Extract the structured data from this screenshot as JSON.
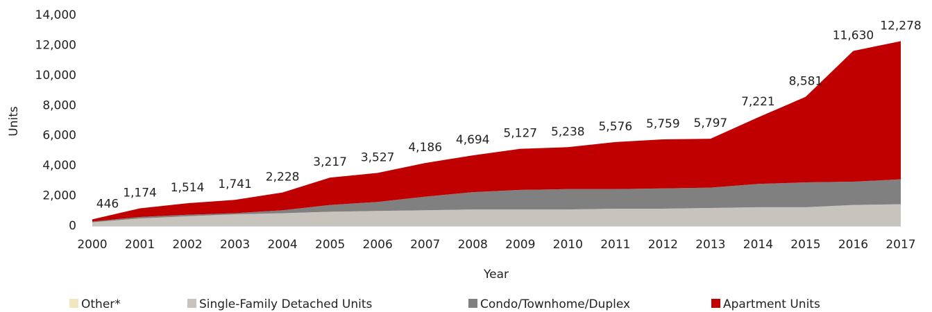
{
  "chart_data": {
    "type": "stacked_area",
    "x_label": "Year",
    "y_label": "Units",
    "categories": [
      "2000",
      "2001",
      "2002",
      "2003",
      "2004",
      "2005",
      "2006",
      "2007",
      "2008",
      "2009",
      "2010",
      "2011",
      "2012",
      "2013",
      "2014",
      "2015",
      "2016",
      "2017"
    ],
    "series": [
      {
        "name": "Other*",
        "color": "#f0e6c0",
        "values": [
          20,
          20,
          20,
          20,
          20,
          20,
          20,
          20,
          20,
          20,
          20,
          20,
          20,
          20,
          20,
          20,
          20,
          20
        ]
      },
      {
        "name": "Single-Family Detached Units",
        "color": "#c8c4bd",
        "values": [
          230,
          480,
          630,
          760,
          830,
          930,
          980,
          1030,
          1080,
          1080,
          1080,
          1130,
          1130,
          1180,
          1230,
          1230,
          1380,
          1430
        ]
      },
      {
        "name": "Condo/Townhome/Duplex",
        "color": "#808080",
        "values": [
          50,
          100,
          100,
          70,
          200,
          450,
          600,
          900,
          1150,
          1300,
          1350,
          1300,
          1350,
          1350,
          1550,
          1650,
          1550,
          1650
        ]
      },
      {
        "name": "Apartment Units",
        "color": "#c00000",
        "values": [
          146,
          574,
          764,
          891,
          1178,
          1817,
          1927,
          2236,
          2444,
          2727,
          2788,
          3126,
          3259,
          3247,
          4421,
          5681,
          8680,
          9178
        ]
      }
    ],
    "totals": [
      446,
      1174,
      1514,
      1741,
      2228,
      3217,
      3527,
      4186,
      4694,
      5127,
      5238,
      5576,
      5759,
      5797,
      7221,
      8581,
      11630,
      12278
    ],
    "total_labels": [
      "446",
      "1,174",
      "1,514",
      "1,741",
      "2,228",
      "3,217",
      "3,527",
      "4,186",
      "4,694",
      "5,127",
      "5,238",
      "5,576",
      "5,759",
      "5,797",
      "7,221",
      "8,581",
      "11,630",
      "12,278"
    ],
    "ylim": [
      0,
      14000
    ],
    "yticks": [
      0,
      {
        "value": 2000,
        "label": "2,000"
      },
      {
        "value": 4000,
        "label": "4,000"
      },
      {
        "value": 6000,
        "label": "6,000"
      },
      {
        "value": 8000,
        "label": "8,000"
      },
      {
        "value": 10000,
        "label": "10,000"
      },
      {
        "value": 12000,
        "label": "12,000"
      },
      {
        "value": 14000,
        "label": "14,000"
      }
    ],
    "grid": false
  }
}
